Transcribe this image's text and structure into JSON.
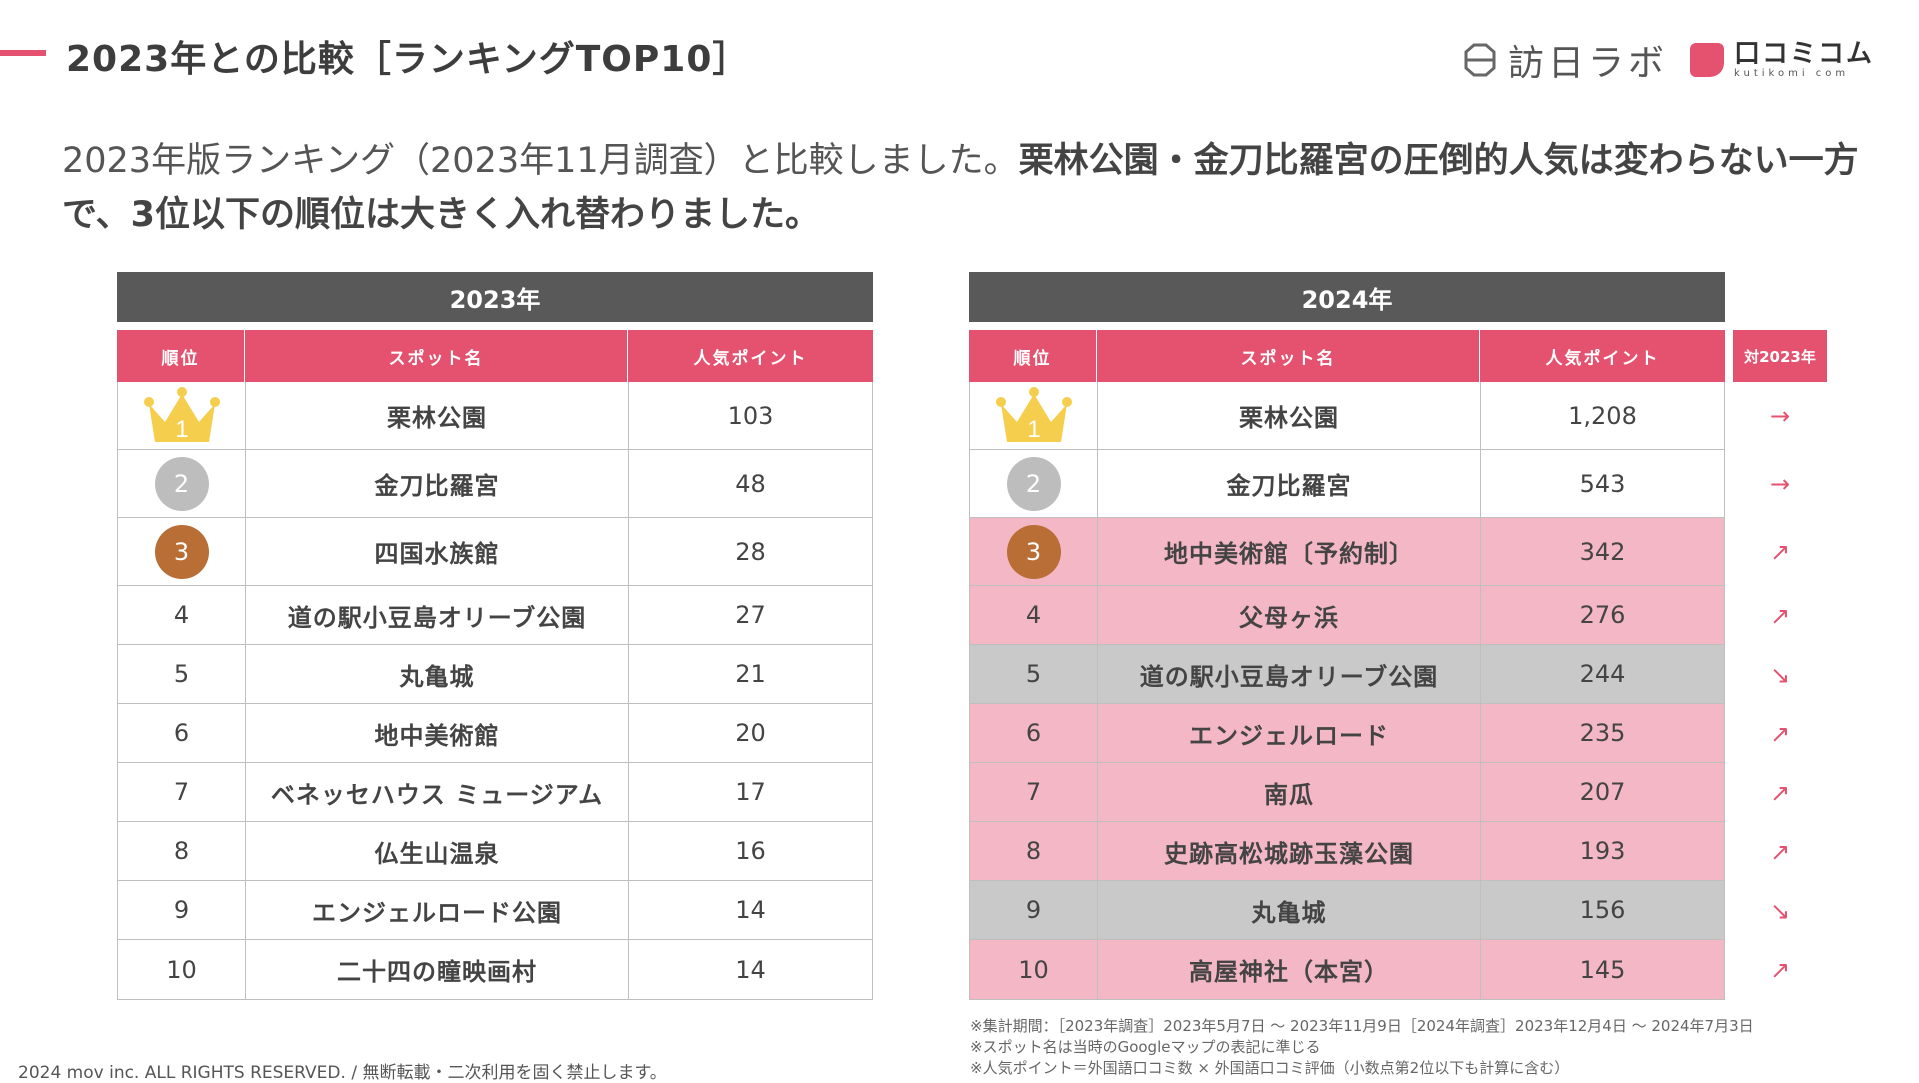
{
  "header": {
    "title": "2023年との比較［ランキングTOP10］",
    "logo_houn": "訪日ラボ",
    "logo_kutikomi": "口コミコム",
    "logo_kutikomi_sub": "kutikomi com"
  },
  "lead": {
    "normal": "2023年版ランキング（2023年11月調査）と比較しました。",
    "bold": "栗林公園・金刀比羅宮の圧倒的人気は変わらない一方で、3位以下の順位は大きく入れ替わりました。"
  },
  "table_2023": {
    "heading": "2023年",
    "columns": [
      "順位",
      "スポット名",
      "人気ポイント"
    ],
    "rows": [
      {
        "rank": "1",
        "spot": "栗林公園",
        "points": "103"
      },
      {
        "rank": "2",
        "spot": "金刀比羅宮",
        "points": "48"
      },
      {
        "rank": "3",
        "spot": "四国水族館",
        "points": "28"
      },
      {
        "rank": "4",
        "spot": "道の駅小豆島オリーブ公園",
        "points": "27"
      },
      {
        "rank": "5",
        "spot": "丸亀城",
        "points": "21"
      },
      {
        "rank": "6",
        "spot": "地中美術館",
        "points": "20"
      },
      {
        "rank": "7",
        "spot": "ベネッセハウス ミュージアム",
        "points": "17"
      },
      {
        "rank": "8",
        "spot": "仏生山温泉",
        "points": "16"
      },
      {
        "rank": "9",
        "spot": "エンジェルロード公園",
        "points": "14"
      },
      {
        "rank": "10",
        "spot": "二十四の瞳映画村",
        "points": "14"
      }
    ]
  },
  "table_2024": {
    "heading": "2024年",
    "columns": [
      "順位",
      "スポット名",
      "人気ポイント"
    ],
    "vs_label": "対2023年",
    "rows": [
      {
        "rank": "1",
        "spot": "栗林公園",
        "points": "1,208",
        "trend": "→",
        "highlight": "none"
      },
      {
        "rank": "2",
        "spot": "金刀比羅宮",
        "points": "543",
        "trend": "→",
        "highlight": "none"
      },
      {
        "rank": "3",
        "spot": "地中美術館〔予約制〕",
        "points": "342",
        "trend": "↗",
        "highlight": "up"
      },
      {
        "rank": "4",
        "spot": "父母ヶ浜",
        "points": "276",
        "trend": "↗",
        "highlight": "up"
      },
      {
        "rank": "5",
        "spot": "道の駅小豆島オリーブ公園",
        "points": "244",
        "trend": "↘",
        "highlight": "down"
      },
      {
        "rank": "6",
        "spot": "エンジェルロード",
        "points": "235",
        "trend": "↗",
        "highlight": "up"
      },
      {
        "rank": "7",
        "spot": "南瓜",
        "points": "207",
        "trend": "↗",
        "highlight": "up"
      },
      {
        "rank": "8",
        "spot": "史跡高松城跡玉藻公園",
        "points": "193",
        "trend": "↗",
        "highlight": "up"
      },
      {
        "rank": "9",
        "spot": "丸亀城",
        "points": "156",
        "trend": "↘",
        "highlight": "down"
      },
      {
        "rank": "10",
        "spot": "高屋神社（本宮）",
        "points": "145",
        "trend": "↗",
        "highlight": "up"
      }
    ]
  },
  "colors": {
    "accent": "#E4526F",
    "up_row": "#F4B7C5",
    "down_row": "#C9C9C9",
    "header_bar": "#595959",
    "gold": "#F6CE4E",
    "silver": "#BDBDBD",
    "bronze": "#B86E34"
  },
  "notes": [
    "※集計期間：［2023年調査］2023年5月7日 〜 2023年11月9日［2024年調査］2023年12月4日 〜 2024年7月3日",
    "※スポット名は当時のGoogleマップの表記に準じる",
    "※人気ポイント＝外国語口コミ数 × 外国語口コミ評価（小数点第2位以下も計算に含む）"
  ],
  "footer": "2024 mov inc. ALL RIGHTS RESERVED. / 無断転載・二次利用を固く禁止します。"
}
